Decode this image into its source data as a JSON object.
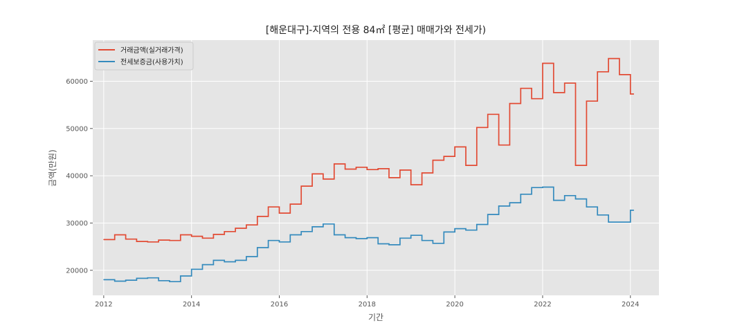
{
  "chart_data": {
    "type": "line",
    "style": "step",
    "title": "[해운대구]-지역의 전용 84㎡ [평균] 매매가와 전세가)",
    "xlabel": "기간",
    "ylabel": "금액(만원)",
    "xlim": [
      2011.75,
      2024.65
    ],
    "ylim": [
      14700,
      68700
    ],
    "xticks": [
      2012,
      2014,
      2016,
      2018,
      2020,
      2022,
      2024
    ],
    "yticks": [
      20000,
      30000,
      40000,
      50000,
      60000
    ],
    "grid": true,
    "legend": "top-left",
    "colors": {
      "sale": "#E24A33",
      "jeonse": "#348ABD",
      "background": "#E5E5E5",
      "grid": "#FFFFFF"
    },
    "series": [
      {
        "name": "거래금액(실거래가격)",
        "color": "#E24A33",
        "x": [
          2012.0,
          2012.25,
          2012.5,
          2012.75,
          2013.0,
          2013.25,
          2013.5,
          2013.75,
          2014.0,
          2014.25,
          2014.5,
          2014.75,
          2015.0,
          2015.25,
          2015.5,
          2015.75,
          2016.0,
          2016.25,
          2016.5,
          2016.75,
          2017.0,
          2017.25,
          2017.5,
          2017.75,
          2018.0,
          2018.25,
          2018.5,
          2018.75,
          2019.0,
          2019.25,
          2019.5,
          2019.75,
          2020.0,
          2020.25,
          2020.5,
          2020.75,
          2021.0,
          2021.25,
          2021.5,
          2021.75,
          2022.0,
          2022.25,
          2022.5,
          2022.75,
          2023.0,
          2023.25,
          2023.5,
          2023.75,
          2024.0
        ],
        "values": [
          26500,
          27500,
          26600,
          26100,
          26000,
          26400,
          26300,
          27500,
          27200,
          26800,
          27600,
          28200,
          28900,
          29600,
          31400,
          33400,
          32100,
          34000,
          37800,
          40400,
          39300,
          42500,
          41400,
          41800,
          41300,
          41500,
          39600,
          41200,
          38100,
          40600,
          43300,
          44100,
          46100,
          42200,
          50200,
          53000,
          46500,
          55300,
          58500,
          56300,
          63800,
          57600,
          59600,
          42200,
          55800,
          62000,
          64800,
          61400,
          57300
        ]
      },
      {
        "name": "전세보증금(사용가치)",
        "color": "#348ABD",
        "x": [
          2012.0,
          2012.25,
          2012.5,
          2012.75,
          2013.0,
          2013.25,
          2013.5,
          2013.75,
          2014.0,
          2014.25,
          2014.5,
          2014.75,
          2015.0,
          2015.25,
          2015.5,
          2015.75,
          2016.0,
          2016.25,
          2016.5,
          2016.75,
          2017.0,
          2017.25,
          2017.5,
          2017.75,
          2018.0,
          2018.25,
          2018.5,
          2018.75,
          2019.0,
          2019.25,
          2019.5,
          2019.75,
          2020.0,
          2020.25,
          2020.5,
          2020.75,
          2021.0,
          2021.25,
          2021.5,
          2021.75,
          2022.0,
          2022.25,
          2022.5,
          2022.75,
          2023.0,
          2023.25,
          2023.5,
          2023.75,
          2024.0
        ],
        "values": [
          18000,
          17700,
          17900,
          18300,
          18400,
          17800,
          17600,
          18800,
          20200,
          21200,
          22100,
          21800,
          22100,
          22900,
          24800,
          26300,
          26000,
          27500,
          28200,
          29200,
          29800,
          27500,
          26900,
          26700,
          26900,
          25600,
          25400,
          26800,
          27400,
          26300,
          25700,
          28100,
          28800,
          28500,
          29700,
          31800,
          33600,
          34300,
          36100,
          37500,
          37600,
          34800,
          35800,
          35100,
          33400,
          31700,
          30200,
          30200,
          32700
        ]
      }
    ]
  }
}
